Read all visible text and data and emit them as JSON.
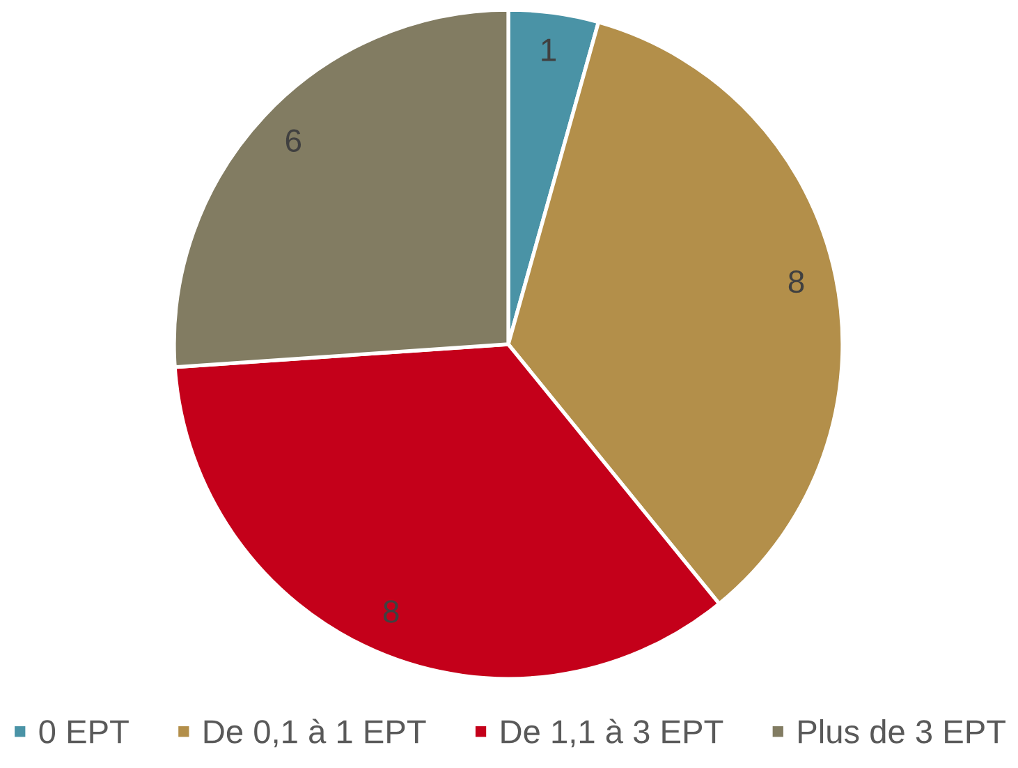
{
  "chart_data": {
    "type": "pie",
    "categories": [
      "0 EPT",
      "De 0,1 à 1 EPT",
      "De 1,1 à 3 EPT",
      "Plus de 3 EPT"
    ],
    "values": [
      1,
      8,
      8,
      6
    ],
    "colors": [
      "#4a93a6",
      "#b38f4a",
      "#c4001a",
      "#827c62"
    ],
    "data_labels": true,
    "legend": "bottom"
  }
}
